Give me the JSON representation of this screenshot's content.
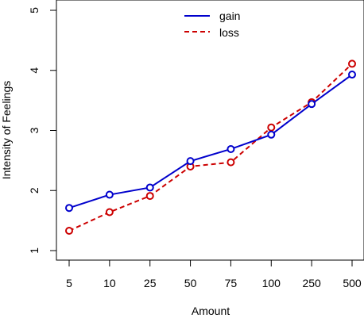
{
  "chart_data": {
    "type": "line",
    "categories": [
      "5",
      "10",
      "25",
      "50",
      "75",
      "100",
      "250",
      "500"
    ],
    "series": [
      {
        "name": "gain",
        "values": [
          1.71,
          1.93,
          2.05,
          2.49,
          2.69,
          2.93,
          3.44,
          3.93
        ],
        "color": "#0000cc",
        "line_style": "solid",
        "marker": "open-circle"
      },
      {
        "name": "loss",
        "values": [
          1.33,
          1.64,
          1.91,
          2.4,
          2.47,
          3.05,
          3.47,
          4.11
        ],
        "color": "#cc0000",
        "line_style": "dashed",
        "marker": "open-circle"
      }
    ],
    "xlabel": "Amount",
    "ylabel": "Intensity of Feelings",
    "ylim": [
      1,
      5
    ],
    "yticks": [
      "1",
      "2",
      "3",
      "4",
      "5"
    ],
    "grid": false,
    "legend_position": "top-center"
  }
}
